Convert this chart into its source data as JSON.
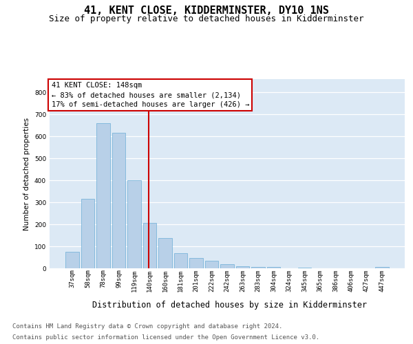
{
  "title": "41, KENT CLOSE, KIDDERMINSTER, DY10 1NS",
  "subtitle": "Size of property relative to detached houses in Kidderminster",
  "xlabel": "Distribution of detached houses by size in Kidderminster",
  "ylabel": "Number of detached properties",
  "categories": [
    "37sqm",
    "58sqm",
    "78sqm",
    "99sqm",
    "119sqm",
    "140sqm",
    "160sqm",
    "181sqm",
    "201sqm",
    "222sqm",
    "242sqm",
    "263sqm",
    "283sqm",
    "304sqm",
    "324sqm",
    "345sqm",
    "365sqm",
    "386sqm",
    "406sqm",
    "427sqm",
    "447sqm"
  ],
  "values": [
    75,
    315,
    660,
    615,
    400,
    205,
    138,
    70,
    46,
    35,
    20,
    10,
    5,
    5,
    0,
    3,
    0,
    0,
    0,
    0,
    5
  ],
  "bar_color": "#b8d0e8",
  "bar_edge_color": "#6baed6",
  "vline_color": "#cc0000",
  "vline_pos": 4.93,
  "annotation_line1": "41 KENT CLOSE: 148sqm",
  "annotation_line2": "← 83% of detached houses are smaller (2,134)",
  "annotation_line3": "17% of semi-detached houses are larger (426) →",
  "annotation_box_facecolor": "#ffffff",
  "annotation_box_edgecolor": "#cc0000",
  "ylim": [
    0,
    860
  ],
  "yticks": [
    0,
    100,
    200,
    300,
    400,
    500,
    600,
    700,
    800
  ],
  "plot_bg_color": "#dce9f5",
  "grid_color": "#ffffff",
  "footer_line1": "Contains HM Land Registry data © Crown copyright and database right 2024.",
  "footer_line2": "Contains public sector information licensed under the Open Government Licence v3.0.",
  "title_fontsize": 11,
  "subtitle_fontsize": 9,
  "xlabel_fontsize": 8.5,
  "ylabel_fontsize": 7.5,
  "tick_fontsize": 6.5,
  "annotation_fontsize": 7.5,
  "footer_fontsize": 6.5
}
